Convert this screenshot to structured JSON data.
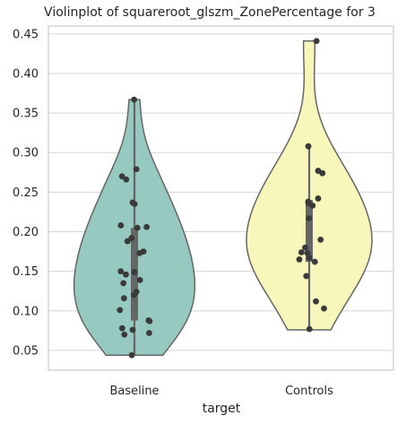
{
  "chart_data": {
    "type": "violin",
    "title": "Violinplot of squareroot_glszm_ZonePercentage for 3",
    "xlabel": "target",
    "ylabel": "",
    "categories": [
      "Baseline",
      "Controls"
    ],
    "ylim": [
      0.025,
      0.46
    ],
    "yticks": [
      "0.05",
      "0.10",
      "0.15",
      "0.20",
      "0.25",
      "0.30",
      "0.35",
      "0.40",
      "0.45"
    ],
    "ytick_values": [
      0.05,
      0.1,
      0.15,
      0.2,
      0.25,
      0.3,
      0.35,
      0.4,
      0.45
    ],
    "grid": true,
    "series": [
      {
        "category": "Baseline",
        "color": "#96c9bf",
        "violin_range": [
          0.044,
          0.367
        ],
        "box": {
          "q1": 0.088,
          "median": 0.142,
          "q3": 0.205,
          "whisker_low": 0.044,
          "whisker_high": 0.367
        },
        "points": [
          0.367,
          0.279,
          0.27,
          0.266,
          0.237,
          0.235,
          0.208,
          0.206,
          0.205,
          0.192,
          0.188,
          0.175,
          0.173,
          0.15,
          0.149,
          0.146,
          0.139,
          0.135,
          0.124,
          0.12,
          0.116,
          0.101,
          0.088,
          0.087,
          0.078,
          0.076,
          0.072,
          0.07,
          0.044
        ]
      },
      {
        "category": "Controls",
        "color": "#f7f7bb",
        "violin_range": [
          0.076,
          0.441
        ],
        "box": {
          "q1": 0.162,
          "median": 0.172,
          "q3": 0.24,
          "whisker_low": 0.076,
          "whisker_high": 0.31
        },
        "points": [
          0.441,
          0.308,
          0.277,
          0.274,
          0.242,
          0.238,
          0.236,
          0.233,
          0.217,
          0.19,
          0.18,
          0.174,
          0.173,
          0.167,
          0.165,
          0.162,
          0.144,
          0.112,
          0.103,
          0.077
        ]
      }
    ]
  }
}
